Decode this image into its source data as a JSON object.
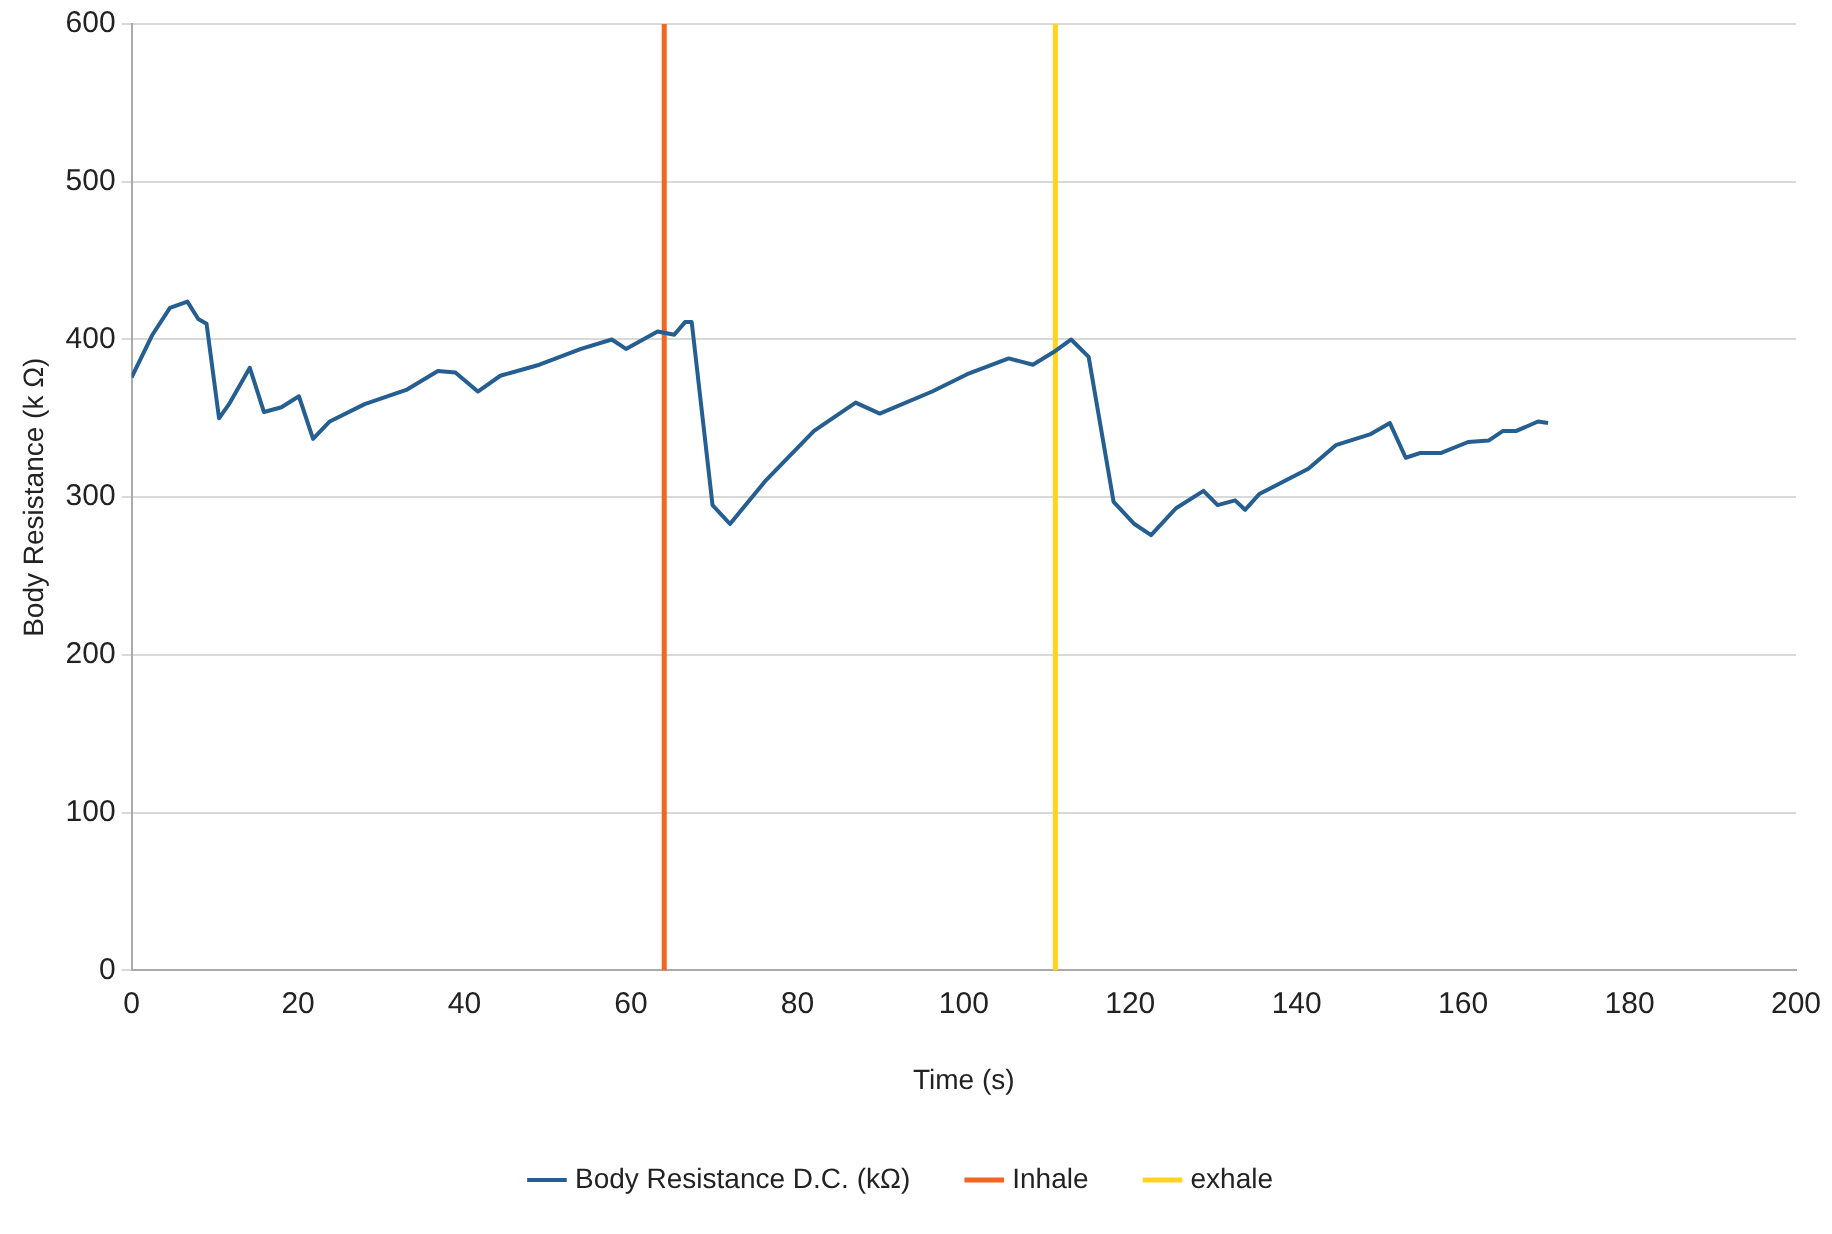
{
  "chart_data": {
    "type": "line",
    "xlabel": "Time (s)",
    "ylabel": "Body Resistance (k Ω)",
    "xlim": [
      0,
      200
    ],
    "xticks": [
      0,
      20,
      40,
      60,
      80,
      100,
      120,
      140,
      160,
      180,
      200
    ],
    "ylim": [
      0,
      600
    ],
    "yticks": [
      0,
      100,
      200,
      300,
      400,
      500,
      600
    ],
    "grid": "y",
    "legend": "bottom",
    "marker": "none",
    "line_style": "solid",
    "series": [
      {
        "name": "Body Resistance D.C. (kΩ)",
        "color": "#255e91",
        "x": [
          0,
          2.5,
          4.6,
          6.7,
          8,
          9,
          10.5,
          11.7,
          14.2,
          15.9,
          18,
          20.1,
          21.8,
          23.8,
          28,
          33,
          36.8,
          38.9,
          41.6,
          44.3,
          49,
          54,
          57.7,
          59.4,
          63.2,
          65.2,
          66.5,
          67.3,
          69.8,
          71.9,
          76.1,
          82,
          87,
          89.9,
          96.2,
          100.4,
          105.4,
          108.3,
          110.8,
          112.9,
          115,
          118,
          120.5,
          122.5,
          125.5,
          128.8,
          130.5,
          132.6,
          133.8,
          135.5,
          141.4,
          144.7,
          148.9,
          151.2,
          153.1,
          154.8,
          157.3,
          160.6,
          163.1,
          164.8,
          166.4,
          169,
          170.2
        ],
        "values": [
          376,
          403,
          420,
          424,
          413,
          410,
          350,
          359,
          382,
          354,
          357,
          364,
          337,
          348,
          359,
          368,
          380,
          379,
          367,
          377,
          384,
          394,
          400,
          394,
          405,
          403,
          411,
          411,
          295,
          283,
          310,
          342,
          360,
          353,
          367,
          378,
          388,
          384,
          392,
          400,
          389,
          297,
          283,
          276,
          293,
          304,
          295,
          298,
          292,
          302,
          318,
          333,
          340,
          347,
          325,
          328,
          328,
          335,
          336,
          342,
          342,
          348,
          347
        ]
      }
    ],
    "ref_lines": [
      {
        "axis": "x",
        "value": 64,
        "label": "Inhale",
        "color": "#f26522"
      },
      {
        "axis": "x",
        "value": 111,
        "label": "exhale",
        "color": "#ffd320"
      }
    ]
  }
}
